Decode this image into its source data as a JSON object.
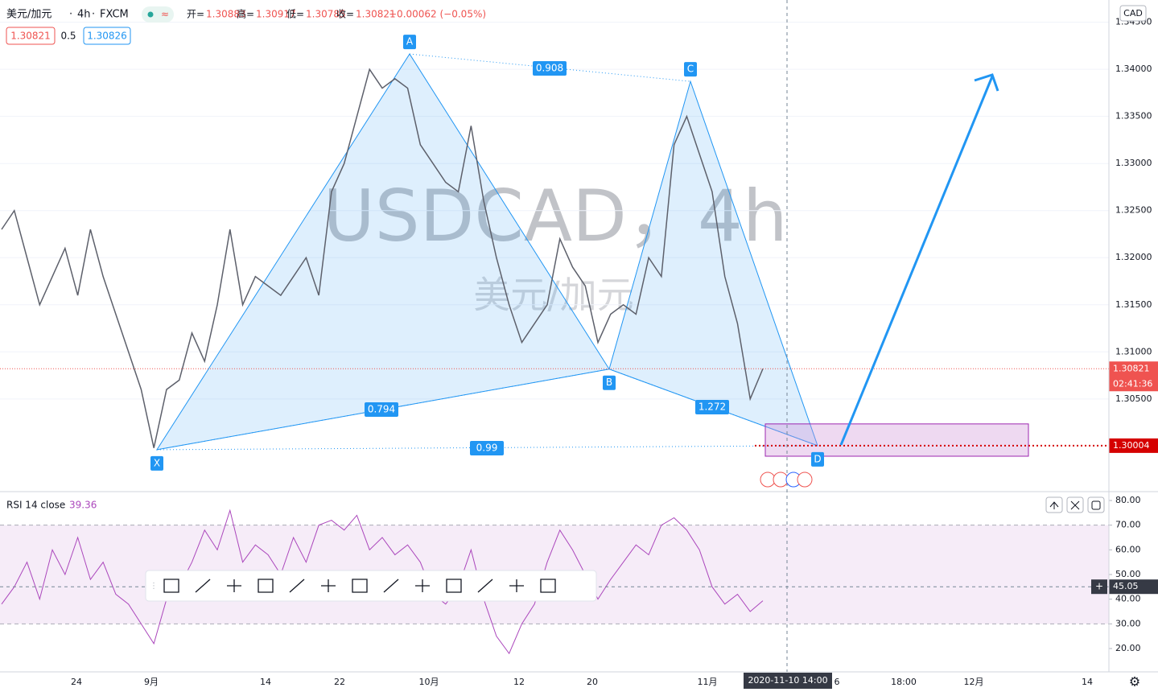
{
  "header": {
    "symbol": "美元/加元",
    "interval": "4h",
    "exchange": "FXCM",
    "ohlc": [
      {
        "label": "开=",
        "value": 1.30883
      },
      {
        "label": "高=",
        "value": 1.30917
      },
      {
        "label": "低=",
        "value": 1.30785
      },
      {
        "label": "收=",
        "value": 1.30821
      }
    ],
    "change": "−0.00062 (−0.05%)",
    "bid": 1.30821,
    "spread": 0.5,
    "ask": 1.30826
  },
  "watermark": {
    "line1": "USDCAD，4h",
    "line2": "美元/加元"
  },
  "time_axis": {
    "labels": [
      "24",
      "9月",
      "14",
      "22",
      "10月",
      "12",
      "20",
      "11月",
      "6",
      "18:00",
      "12月",
      "14"
    ],
    "crosshair": "2020-11-10  14:00"
  },
  "chart_data": [
    {
      "type": "line",
      "currency": "CAD",
      "color": "#5d606b",
      "values": [
        1.323,
        1.325,
        1.32,
        1.315,
        1.318,
        1.321,
        1.316,
        1.323,
        1.318,
        1.314,
        1.31,
        1.306,
        1.2998,
        1.306,
        1.307,
        1.312,
        1.309,
        1.315,
        1.323,
        1.315,
        1.318,
        1.317,
        1.316,
        1.318,
        1.32,
        1.316,
        1.327,
        1.33,
        1.335,
        1.34,
        1.338,
        1.339,
        1.338,
        1.332,
        1.33,
        1.328,
        1.327,
        1.334,
        1.326,
        1.32,
        1.315,
        1.311,
        1.313,
        1.315,
        1.322,
        1.319,
        1.317,
        1.311,
        1.314,
        1.315,
        1.314,
        1.32,
        1.318,
        1.332,
        1.335,
        1.331,
        1.327,
        1.318,
        1.313,
        1.305,
        1.30821
      ],
      "ylim": [
        1.29516,
        1.34736
      ],
      "yticks": [
        {
          "value": 1.345,
          "label": "1.34500"
        },
        {
          "value": 1.34,
          "label": "1.34000"
        },
        {
          "value": 1.335,
          "label": "1.33500"
        },
        {
          "value": 1.33,
          "label": "1.33000"
        },
        {
          "value": 1.325,
          "label": "1.32500"
        },
        {
          "value": 1.32,
          "label": "1.32000"
        },
        {
          "value": 1.315,
          "label": "1.31500"
        },
        {
          "value": 1.31,
          "label": "1.31000"
        },
        {
          "value": 1.305,
          "label": "1.30500"
        }
      ],
      "last_price": 1.30821,
      "countdown": "02:41:36",
      "target": 1.30004,
      "pattern": [
        {
          "label": "X",
          "value": 1.29961
        },
        {
          "label": "A",
          "value": 1.34163
        },
        {
          "label": "B",
          "value": 1.30817
        },
        {
          "label": "C",
          "value": 1.33872
        },
        {
          "label": "D",
          "value": 1.30004
        }
      ],
      "ratios": [
        0.908,
        0.794,
        0.99,
        1.272
      ],
      "zone": [
        1.30235,
        1.29892
      ]
    },
    {
      "type": "line",
      "title": "RSI 14 close",
      "last": 39.36,
      "color": "#ab47bc",
      "values": [
        38,
        45,
        55,
        40,
        60,
        50,
        65,
        48,
        55,
        42,
        38,
        30,
        22,
        40,
        45,
        55,
        68,
        60,
        76,
        55,
        62,
        58,
        50,
        65,
        55,
        70,
        72,
        68,
        74,
        60,
        65,
        58,
        62,
        55,
        42,
        38,
        45,
        60,
        40,
        25,
        18,
        30,
        38,
        55,
        68,
        60,
        50,
        40,
        48,
        55,
        62,
        58,
        70,
        73,
        68,
        60,
        45,
        38,
        42,
        35,
        39.36
      ],
      "ylim": [
        10.55,
        83.59
      ],
      "yticks": [
        {
          "value": 80,
          "label": "80.00"
        },
        {
          "value": 70,
          "label": "70.00"
        },
        {
          "value": 60,
          "label": "60.00"
        },
        {
          "value": 50,
          "label": "50.00"
        },
        {
          "value": 40,
          "label": "40.00"
        },
        {
          "value": 30,
          "label": "30.00"
        },
        {
          "value": 20,
          "label": "20.00"
        }
      ],
      "band": [
        30,
        70
      ],
      "crosshair": 45.05
    }
  ]
}
